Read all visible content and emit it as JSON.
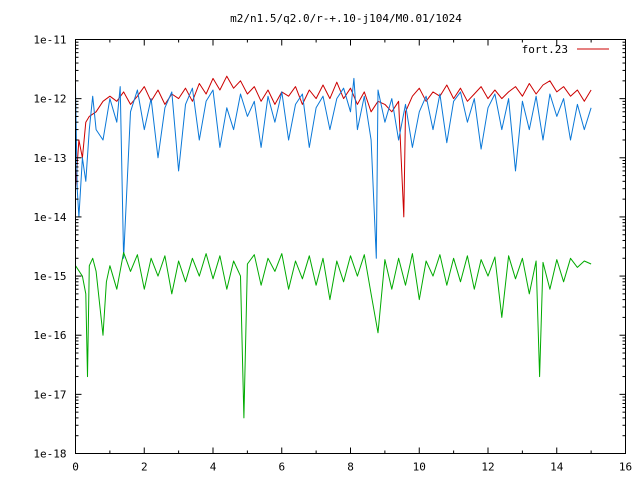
{
  "chart_data": {
    "type": "line",
    "title": "m2/n1.5/q2.0/r-+.10-j104/M0.01/1024",
    "xlabel": "",
    "ylabel": "",
    "xlim": [
      0,
      16
    ],
    "ylim": [
      1e-18,
      1e-11
    ],
    "yscale": "log",
    "grid": false,
    "legend_position": "top-right",
    "x_ticks": [
      "0",
      "2",
      "4",
      "6",
      "8",
      "10",
      "12",
      "14",
      "16"
    ],
    "y_ticks": [
      "1e-18",
      "1e-17",
      "1e-16",
      "1e-15",
      "1e-14",
      "1e-13",
      "1e-12",
      "1e-11"
    ],
    "series": [
      {
        "name": "fort.23",
        "color": "#cc0000",
        "x": [
          0.0,
          0.1,
          0.2,
          0.3,
          0.4,
          0.6,
          0.8,
          1.0,
          1.2,
          1.4,
          1.6,
          1.8,
          2.0,
          2.2,
          2.4,
          2.6,
          2.8,
          3.0,
          3.2,
          3.4,
          3.6,
          3.8,
          4.0,
          4.2,
          4.4,
          4.6,
          4.8,
          5.0,
          5.2,
          5.4,
          5.6,
          5.8,
          6.0,
          6.2,
          6.4,
          6.6,
          6.8,
          7.0,
          7.2,
          7.4,
          7.6,
          7.8,
          8.0,
          8.2,
          8.4,
          8.6,
          8.8,
          9.0,
          9.2,
          9.4,
          9.55,
          9.6,
          9.8,
          10.0,
          10.2,
          10.4,
          10.6,
          10.8,
          11.0,
          11.2,
          11.4,
          11.6,
          11.8,
          12.0,
          12.2,
          12.4,
          12.6,
          12.8,
          13.0,
          13.2,
          13.4,
          13.6,
          13.8,
          14.0,
          14.2,
          14.4,
          14.6,
          14.8,
          15.0
        ],
        "y": [
          3e-14,
          2e-13,
          1e-13,
          4e-13,
          5e-13,
          6e-13,
          9e-13,
          1.1e-12,
          9e-13,
          1.3e-12,
          8e-13,
          1.1e-12,
          1.6e-12,
          9e-13,
          1.4e-12,
          8e-13,
          1.2e-12,
          1e-12,
          1.5e-12,
          9e-13,
          1.8e-12,
          1.2e-12,
          2.2e-12,
          1.4e-12,
          2.4e-12,
          1.5e-12,
          2e-12,
          1.2e-12,
          1.6e-12,
          9e-13,
          1.4e-12,
          8e-13,
          1.3e-12,
          1.1e-12,
          1.6e-12,
          8e-13,
          1.4e-12,
          1e-12,
          1.7e-12,
          1e-12,
          1.9e-12,
          1e-12,
          1.5e-12,
          8e-13,
          1.3e-12,
          6e-13,
          9e-13,
          8e-13,
          6e-13,
          9e-13,
          1e-14,
          6e-13,
          1.1e-12,
          1.5e-12,
          9e-13,
          1.3e-12,
          1.1e-12,
          1.7e-12,
          1e-12,
          1.5e-12,
          9e-13,
          1.2e-12,
          1.6e-12,
          1e-12,
          1.4e-12,
          1e-12,
          1.3e-12,
          1.6e-12,
          1.1e-12,
          1.8e-12,
          1.2e-12,
          1.7e-12,
          2e-12,
          1.3e-12,
          1.6e-12,
          1.1e-12,
          1.4e-12,
          9e-13,
          1.4e-12
        ]
      },
      {
        "name": "",
        "color": "#0a78d8",
        "x": [
          0.0,
          0.05,
          0.1,
          0.2,
          0.3,
          0.4,
          0.5,
          0.6,
          0.8,
          1.0,
          1.2,
          1.3,
          1.4,
          1.6,
          1.8,
          2.0,
          2.2,
          2.4,
          2.6,
          2.8,
          3.0,
          3.2,
          3.4,
          3.6,
          3.8,
          4.0,
          4.2,
          4.4,
          4.6,
          4.8,
          5.0,
          5.2,
          5.4,
          5.6,
          5.8,
          6.0,
          6.2,
          6.4,
          6.6,
          6.8,
          7.0,
          7.2,
          7.4,
          7.6,
          7.8,
          8.0,
          8.1,
          8.2,
          8.4,
          8.6,
          8.75,
          8.8,
          9.0,
          9.2,
          9.4,
          9.6,
          9.8,
          10.0,
          10.2,
          10.4,
          10.6,
          10.8,
          11.0,
          11.2,
          11.4,
          11.6,
          11.8,
          12.0,
          12.2,
          12.4,
          12.6,
          12.8,
          13.0,
          13.2,
          13.4,
          13.6,
          13.8,
          14.0,
          14.2,
          14.4,
          14.6,
          14.8,
          15.0
        ],
        "y": [
          1.5e-12,
          3e-14,
          1e-14,
          1e-13,
          4e-14,
          3e-13,
          1.1e-12,
          3e-13,
          2e-13,
          1e-12,
          4e-13,
          1.6e-12,
          2e-15,
          6e-13,
          1.4e-12,
          3e-13,
          1e-12,
          1e-13,
          7e-13,
          1.3e-12,
          6e-14,
          8e-13,
          1.5e-12,
          2e-13,
          9e-13,
          1.4e-12,
          1.5e-13,
          7e-13,
          3e-13,
          1.2e-12,
          5e-13,
          9e-13,
          1.5e-13,
          1.1e-12,
          4e-13,
          1.3e-12,
          2e-13,
          8e-13,
          1.2e-12,
          1.5e-13,
          7e-13,
          1.1e-12,
          3e-13,
          1e-12,
          1.5e-12,
          6e-13,
          2.2e-12,
          3e-13,
          1.1e-12,
          2e-13,
          2e-15,
          1.4e-12,
          4e-13,
          1e-12,
          2e-13,
          8e-13,
          1.5e-13,
          6e-13,
          1.1e-12,
          3e-13,
          1.2e-12,
          1.8e-13,
          9e-13,
          1.3e-12,
          4e-13,
          1e-12,
          1.4e-13,
          7e-13,
          1.2e-12,
          3e-13,
          1e-12,
          6e-14,
          9e-13,
          3e-13,
          1.1e-12,
          2e-13,
          1.2e-12,
          5e-13,
          1e-12,
          2e-13,
          8e-13,
          3e-13,
          7e-13
        ]
      },
      {
        "name": "",
        "color": "#00aa00",
        "x": [
          0.0,
          0.2,
          0.3,
          0.35,
          0.4,
          0.5,
          0.6,
          0.8,
          0.9,
          1.0,
          1.2,
          1.4,
          1.6,
          1.8,
          2.0,
          2.2,
          2.4,
          2.6,
          2.8,
          3.0,
          3.2,
          3.4,
          3.6,
          3.8,
          4.0,
          4.2,
          4.4,
          4.6,
          4.8,
          4.9,
          5.0,
          5.2,
          5.4,
          5.6,
          5.8,
          6.0,
          6.2,
          6.4,
          6.6,
          6.8,
          7.0,
          7.2,
          7.4,
          7.6,
          7.8,
          8.0,
          8.2,
          8.4,
          8.6,
          8.8,
          9.0,
          9.2,
          9.4,
          9.6,
          9.8,
          10.0,
          10.2,
          10.4,
          10.6,
          10.8,
          11.0,
          11.2,
          11.4,
          11.6,
          11.8,
          12.0,
          12.2,
          12.4,
          12.6,
          12.8,
          13.0,
          13.2,
          13.4,
          13.5,
          13.6,
          13.8,
          14.0,
          14.2,
          14.4,
          14.6,
          14.8,
          15.0
        ],
        "y": [
          1.5e-15,
          1e-15,
          5e-16,
          2e-17,
          1.5e-15,
          2e-15,
          1.2e-15,
          1e-16,
          8e-16,
          1.5e-15,
          6e-16,
          2.5e-15,
          1.2e-15,
          2.3e-15,
          6e-16,
          2e-15,
          1e-15,
          2.2e-15,
          5e-16,
          1.8e-15,
          8e-16,
          2e-15,
          1e-15,
          2.4e-15,
          9e-16,
          2.2e-15,
          6e-16,
          1.8e-15,
          1e-15,
          4e-18,
          1.6e-15,
          2.3e-15,
          7e-16,
          2e-15,
          1.2e-15,
          2.4e-15,
          6e-16,
          1.8e-15,
          9e-16,
          2.2e-15,
          7e-16,
          2e-15,
          4e-16,
          1.8e-15,
          8e-16,
          2.2e-15,
          1e-15,
          2.3e-15,
          5e-16,
          1.1e-16,
          1.9e-15,
          6e-16,
          2e-15,
          7e-16,
          2.4e-15,
          4e-16,
          1.8e-15,
          1e-15,
          2.3e-15,
          7e-16,
          2e-15,
          8e-16,
          2.2e-15,
          6e-16,
          1.9e-15,
          1e-15,
          2.1e-15,
          2e-16,
          2.2e-15,
          9e-16,
          2e-15,
          5e-16,
          1.8e-15,
          2e-17,
          1.7e-15,
          6e-16,
          1.9e-15,
          8e-16,
          2e-15,
          1.4e-15,
          1.8e-15,
          1.6e-15
        ]
      }
    ]
  }
}
